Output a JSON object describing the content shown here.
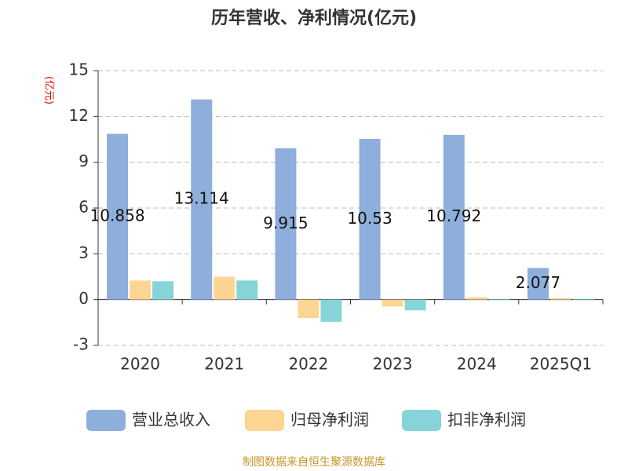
{
  "chart_data": {
    "type": "bar",
    "title": "历年营收、净利情况(亿元)",
    "y_label": "(亿元)",
    "categories": [
      "2020",
      "2021",
      "2022",
      "2023",
      "2024",
      "2025Q1"
    ],
    "series": [
      {
        "name": "营业总收入",
        "color": "#8eaedb",
        "values": [
          10.858,
          13.114,
          9.915,
          10.53,
          10.792,
          2.077
        ],
        "show_labels": true
      },
      {
        "name": "归母净利润",
        "color": "#fcd592",
        "values": [
          1.25,
          1.5,
          -1.2,
          -0.45,
          0.15,
          0.1
        ]
      },
      {
        "name": "扣非净利润",
        "color": "#86d4d8",
        "values": [
          1.2,
          1.25,
          -1.45,
          -0.7,
          0.05,
          0.05
        ]
      }
    ],
    "ylim": [
      -3,
      15
    ],
    "yticks": [
      -3,
      0,
      3,
      6,
      9,
      12,
      15
    ],
    "grid": true,
    "legend": "bottom",
    "source": "制图数据来自恒生聚源数据库"
  }
}
